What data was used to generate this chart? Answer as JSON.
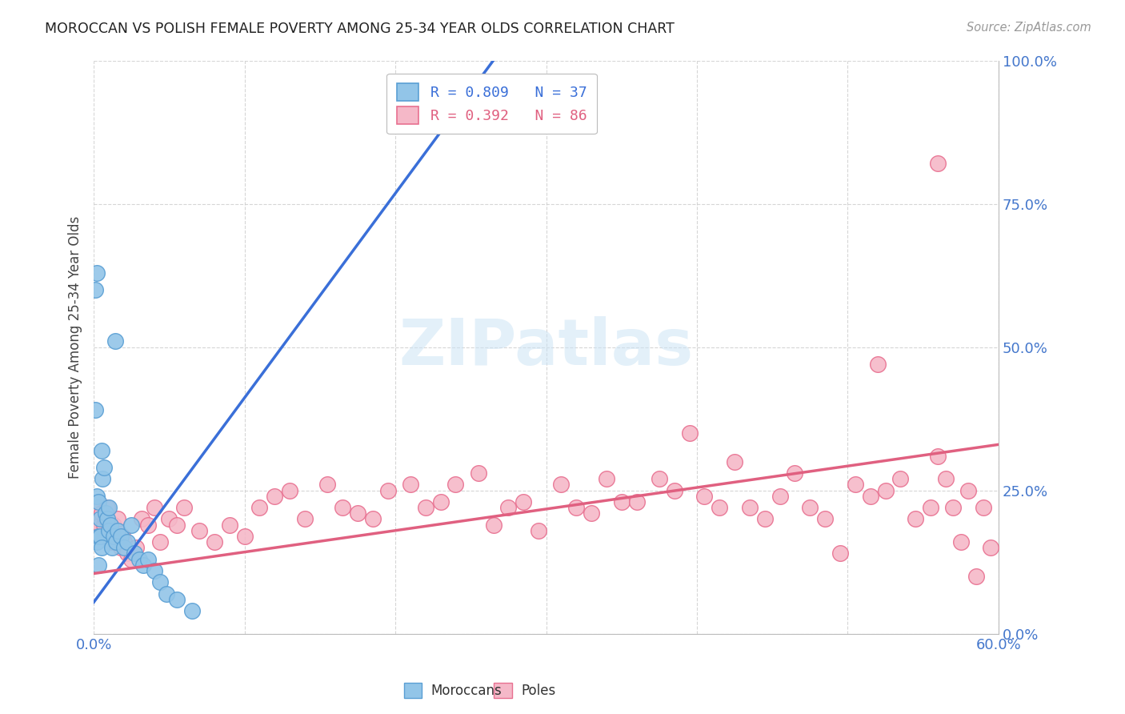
{
  "title": "MOROCCAN VS POLISH FEMALE POVERTY AMONG 25-34 YEAR OLDS CORRELATION CHART",
  "source": "Source: ZipAtlas.com",
  "ylabel": "Female Poverty Among 25-34 Year Olds",
  "xlim": [
    0.0,
    0.6
  ],
  "ylim": [
    0.0,
    1.0
  ],
  "watermark_zip": "ZIP",
  "watermark_atlas": "atlas",
  "moroccan_color": "#92c5e8",
  "moroccan_edge": "#5a9fd4",
  "polish_color": "#f5b8c8",
  "polish_edge": "#e87090",
  "trend_moroccan_color": "#3a6fd8",
  "trend_polish_color": "#e06080",
  "tick_color": "#4477cc",
  "title_color": "#222222",
  "source_color": "#999999",
  "ylabel_color": "#444444",
  "legend_label1": "R = 0.809   N = 37",
  "legend_label2": "R = 0.392   N = 86",
  "legend_color1": "#3a6fd8",
  "legend_color2": "#e06080",
  "bottom_legend_labels": [
    "Moroccans",
    "Poles"
  ],
  "moroccan_x": [
    0.001,
    0.001,
    0.002,
    0.002,
    0.002,
    0.003,
    0.003,
    0.003,
    0.004,
    0.004,
    0.005,
    0.005,
    0.006,
    0.007,
    0.008,
    0.009,
    0.01,
    0.01,
    0.011,
    0.012,
    0.013,
    0.014,
    0.015,
    0.016,
    0.018,
    0.02,
    0.022,
    0.025,
    0.027,
    0.03,
    0.033,
    0.036,
    0.04,
    0.044,
    0.048,
    0.055,
    0.065
  ],
  "moroccan_y": [
    0.39,
    0.6,
    0.16,
    0.24,
    0.63,
    0.17,
    0.23,
    0.12,
    0.2,
    0.17,
    0.15,
    0.32,
    0.27,
    0.29,
    0.21,
    0.2,
    0.18,
    0.22,
    0.19,
    0.15,
    0.17,
    0.51,
    0.16,
    0.18,
    0.17,
    0.15,
    0.16,
    0.19,
    0.14,
    0.13,
    0.12,
    0.13,
    0.11,
    0.09,
    0.07,
    0.06,
    0.04
  ],
  "polish_x": [
    0.001,
    0.002,
    0.003,
    0.004,
    0.005,
    0.006,
    0.007,
    0.008,
    0.009,
    0.01,
    0.011,
    0.012,
    0.013,
    0.015,
    0.016,
    0.017,
    0.018,
    0.019,
    0.02,
    0.022,
    0.025,
    0.028,
    0.032,
    0.036,
    0.04,
    0.044,
    0.05,
    0.055,
    0.06,
    0.07,
    0.08,
    0.09,
    0.1,
    0.11,
    0.12,
    0.13,
    0.14,
    0.155,
    0.165,
    0.175,
    0.185,
    0.195,
    0.21,
    0.22,
    0.23,
    0.24,
    0.255,
    0.265,
    0.275,
    0.285,
    0.295,
    0.31,
    0.32,
    0.33,
    0.34,
    0.35,
    0.36,
    0.375,
    0.385,
    0.395,
    0.405,
    0.415,
    0.425,
    0.435,
    0.445,
    0.455,
    0.465,
    0.475,
    0.485,
    0.495,
    0.505,
    0.515,
    0.525,
    0.535,
    0.545,
    0.555,
    0.56,
    0.565,
    0.57,
    0.575,
    0.58,
    0.585,
    0.59,
    0.595,
    0.52,
    0.56
  ],
  "polish_y": [
    0.18,
    0.2,
    0.22,
    0.19,
    0.21,
    0.17,
    0.19,
    0.2,
    0.22,
    0.18,
    0.17,
    0.16,
    0.19,
    0.18,
    0.2,
    0.16,
    0.15,
    0.17,
    0.16,
    0.14,
    0.13,
    0.15,
    0.2,
    0.19,
    0.22,
    0.16,
    0.2,
    0.19,
    0.22,
    0.18,
    0.16,
    0.19,
    0.17,
    0.22,
    0.24,
    0.25,
    0.2,
    0.26,
    0.22,
    0.21,
    0.2,
    0.25,
    0.26,
    0.22,
    0.23,
    0.26,
    0.28,
    0.19,
    0.22,
    0.23,
    0.18,
    0.26,
    0.22,
    0.21,
    0.27,
    0.23,
    0.23,
    0.27,
    0.25,
    0.35,
    0.24,
    0.22,
    0.3,
    0.22,
    0.2,
    0.24,
    0.28,
    0.22,
    0.2,
    0.14,
    0.26,
    0.24,
    0.25,
    0.27,
    0.2,
    0.22,
    0.31,
    0.27,
    0.22,
    0.16,
    0.25,
    0.1,
    0.22,
    0.15,
    0.47,
    0.82
  ],
  "trend_mor_x0": 0.0,
  "trend_mor_y0": 0.055,
  "trend_mor_x1": 0.265,
  "trend_mor_y1": 1.0,
  "trend_pol_x0": 0.0,
  "trend_pol_y0": 0.105,
  "trend_pol_x1": 0.6,
  "trend_pol_y1": 0.33
}
